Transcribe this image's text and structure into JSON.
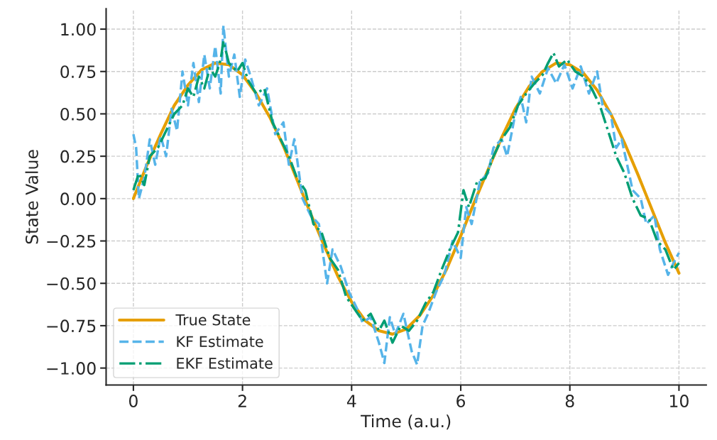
{
  "chart_data": {
    "type": "line",
    "xlabel": "Time (a.u.)",
    "ylabel": "State Value",
    "xlim": [
      -0.5,
      10.5
    ],
    "xticks": [
      0,
      2,
      4,
      6,
      8,
      10
    ],
    "ylim": [
      -1.1,
      1.12
    ],
    "yticks": [
      {
        "value": 1,
        "label": "1.00"
      },
      {
        "value": 0.75,
        "label": "0.75"
      },
      {
        "value": 0.5,
        "label": "0.50"
      },
      {
        "value": 0.25,
        "label": "0.25"
      },
      {
        "value": 0,
        "label": "0.00"
      },
      {
        "value": -0.25,
        "label": "−0.25"
      },
      {
        "value": -0.5,
        "label": "−0.50"
      },
      {
        "value": -0.75,
        "label": "−0.75"
      },
      {
        "value": -1,
        "label": "−1.00"
      }
    ],
    "grid": true,
    "legend": "bottom left",
    "series": [
      {
        "name": "True State",
        "color": "#e69f00",
        "line_style": "solid",
        "x": [
          0,
          0.25,
          0.5,
          0.75,
          1,
          1.25,
          1.5,
          1.75,
          2,
          2.25,
          2.5,
          2.75,
          3,
          3.25,
          3.5,
          3.75,
          4,
          4.25,
          4.5,
          4.75,
          5,
          5.25,
          5.5,
          5.75,
          6,
          6.25,
          6.5,
          6.75,
          7,
          7.25,
          7.5,
          7.75,
          8,
          8.25,
          8.5,
          8.75,
          9,
          9.25,
          9.5,
          9.75,
          10
        ],
        "values": [
          0,
          0.2,
          0.38,
          0.55,
          0.67,
          0.76,
          0.8,
          0.79,
          0.73,
          0.62,
          0.48,
          0.31,
          0.11,
          -0.09,
          -0.28,
          -0.46,
          -0.61,
          -0.72,
          -0.78,
          -0.8,
          -0.77,
          -0.69,
          -0.57,
          -0.41,
          -0.22,
          -0.02,
          0.17,
          0.36,
          0.53,
          0.66,
          0.75,
          0.8,
          0.79,
          0.74,
          0.64,
          0.5,
          0.33,
          0.14,
          -0.06,
          -0.26,
          -0.44
        ]
      },
      {
        "name": "KF Estimate",
        "color": "#56b4e9",
        "line_style": "dashed",
        "x": [
          0,
          0.05,
          0.1,
          0.2,
          0.3,
          0.4,
          0.5,
          0.6,
          0.7,
          0.8,
          0.9,
          1.0,
          1.1,
          1.2,
          1.3,
          1.4,
          1.5,
          1.6,
          1.65,
          1.75,
          1.85,
          1.95,
          2.05,
          2.15,
          2.3,
          2.45,
          2.6,
          2.75,
          2.85,
          2.95,
          3.1,
          3.25,
          3.4,
          3.55,
          3.65,
          3.8,
          3.95,
          4.1,
          4.2,
          4.35,
          4.5,
          4.6,
          4.7,
          4.8,
          4.95,
          5.1,
          5.2,
          5.3,
          5.4,
          5.55,
          5.7,
          5.85,
          6.0,
          6.1,
          6.2,
          6.35,
          6.5,
          6.6,
          6.75,
          6.85,
          7.0,
          7.1,
          7.2,
          7.3,
          7.45,
          7.6,
          7.75,
          7.9,
          8.05,
          8.2,
          8.35,
          8.5,
          8.6,
          8.75,
          8.85,
          8.95,
          9.05,
          9.15,
          9.3,
          9.4,
          9.55,
          9.65,
          9.8,
          9.9,
          10.0
        ],
        "values": [
          0.38,
          0.3,
          0.0,
          0.12,
          0.35,
          0.2,
          0.37,
          0.25,
          0.53,
          0.4,
          0.75,
          0.55,
          0.8,
          0.57,
          0.85,
          0.65,
          0.9,
          0.62,
          1.02,
          0.72,
          0.85,
          0.6,
          0.82,
          0.72,
          0.55,
          0.65,
          0.38,
          0.45,
          0.2,
          0.35,
          0.0,
          -0.1,
          -0.15,
          -0.5,
          -0.3,
          -0.4,
          -0.55,
          -0.65,
          -0.73,
          -0.7,
          -0.85,
          -0.97,
          -0.7,
          -0.8,
          -0.68,
          -0.9,
          -0.98,
          -0.75,
          -0.68,
          -0.55,
          -0.45,
          -0.25,
          -0.35,
          -0.05,
          -0.15,
          0.1,
          0.15,
          0.3,
          0.35,
          0.25,
          0.5,
          0.6,
          0.45,
          0.72,
          0.62,
          0.77,
          0.68,
          0.79,
          0.65,
          0.78,
          0.62,
          0.75,
          0.55,
          0.5,
          0.3,
          0.35,
          0.2,
          0.05,
          0.0,
          -0.15,
          -0.1,
          -0.3,
          -0.45,
          -0.38,
          -0.32
        ]
      },
      {
        "name": "EKF Estimate",
        "color": "#009e73",
        "line_style": "dashdot",
        "x": [
          0,
          0.1,
          0.2,
          0.3,
          0.45,
          0.6,
          0.75,
          0.9,
          1.0,
          1.1,
          1.2,
          1.3,
          1.4,
          1.5,
          1.6,
          1.65,
          1.75,
          1.9,
          2.0,
          2.1,
          2.25,
          2.4,
          2.55,
          2.7,
          2.85,
          3.0,
          3.15,
          3.3,
          3.45,
          3.6,
          3.75,
          3.9,
          4.05,
          4.2,
          4.35,
          4.5,
          4.6,
          4.75,
          4.9,
          5.05,
          5.2,
          5.35,
          5.5,
          5.65,
          5.8,
          5.95,
          6.05,
          6.15,
          6.3,
          6.45,
          6.6,
          6.75,
          6.9,
          7.05,
          7.2,
          7.35,
          7.5,
          7.6,
          7.7,
          7.8,
          7.95,
          8.1,
          8.25,
          8.4,
          8.55,
          8.7,
          8.85,
          9.0,
          9.15,
          9.3,
          9.45,
          9.6,
          9.75,
          9.9,
          10.0
        ],
        "values": [
          0.05,
          0.15,
          0.08,
          0.25,
          0.3,
          0.4,
          0.5,
          0.55,
          0.65,
          0.6,
          0.72,
          0.65,
          0.77,
          0.72,
          0.82,
          0.93,
          0.8,
          0.75,
          0.8,
          0.7,
          0.62,
          0.65,
          0.45,
          0.35,
          0.25,
          0.12,
          0.05,
          -0.15,
          -0.2,
          -0.35,
          -0.42,
          -0.58,
          -0.65,
          -0.72,
          -0.68,
          -0.78,
          -0.72,
          -0.85,
          -0.75,
          -0.78,
          -0.72,
          -0.62,
          -0.55,
          -0.42,
          -0.3,
          -0.2,
          0.05,
          -0.05,
          0.1,
          0.12,
          0.25,
          0.35,
          0.42,
          0.55,
          0.62,
          0.68,
          0.73,
          0.8,
          0.86,
          0.78,
          0.82,
          0.75,
          0.72,
          0.65,
          0.55,
          0.4,
          0.25,
          0.15,
          0.0,
          -0.1,
          -0.12,
          -0.25,
          -0.3,
          -0.42,
          -0.38
        ]
      }
    ]
  }
}
